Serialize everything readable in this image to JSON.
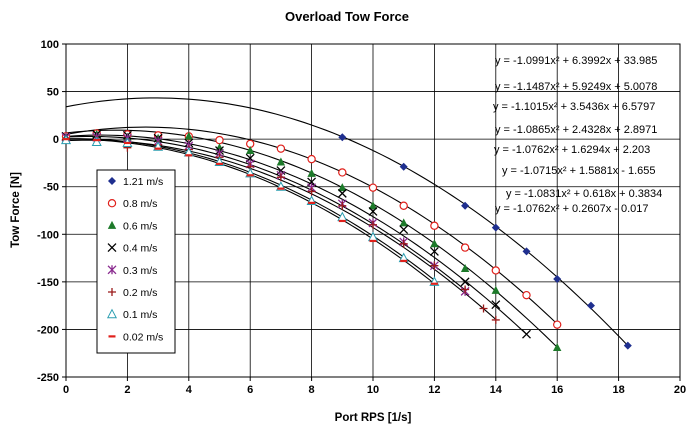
{
  "chart_data": {
    "type": "scatter",
    "title": "Overload Tow Force",
    "xlabel": "Port RPS [1/s]",
    "ylabel": "Tow Force [N]",
    "xlim": [
      0,
      20
    ],
    "ylim": [
      -250,
      100
    ],
    "x_ticks": [
      "0",
      "2",
      "4",
      "6",
      "8",
      "10",
      "12",
      "14",
      "16",
      "18",
      "20"
    ],
    "y_ticks": [
      "100",
      "50",
      "0",
      "-50",
      "-100",
      "-150",
      "-200",
      "-250"
    ],
    "grid": true,
    "legend_position": "left",
    "series": [
      {
        "name": "1.21 m/s",
        "marker": "diamond",
        "color": "#1f2f8f",
        "x": [
          9,
          11,
          13,
          14,
          15,
          16,
          17.1,
          18.3
        ],
        "y": [
          2,
          -29,
          -70,
          -93,
          -118,
          -147,
          -175,
          -217
        ],
        "fit": {
          "a": -1.0991,
          "b": 6.3992,
          "c": 33.985,
          "x_from": 0,
          "x_to": 18.3
        },
        "equation": "y = -1.0991x² + 6.3992x + 33.985"
      },
      {
        "name": "0.8 m/s",
        "marker": "circle",
        "color": "#e0201b",
        "x": [
          0,
          1,
          2,
          3,
          4,
          5,
          6,
          7,
          8,
          9,
          10,
          11,
          12,
          13,
          14,
          15,
          16
        ],
        "y": [
          3,
          6,
          5,
          4,
          3,
          -1,
          -5,
          -10,
          -21,
          -35,
          -51,
          -70,
          -91,
          -114,
          -138,
          -164,
          -195
        ],
        "fit": {
          "a": -1.1487,
          "b": 5.9249,
          "c": 5.0078,
          "x_from": 0,
          "x_to": 16
        },
        "equation": "y = -1.1487x² + 5.9249x + 5.0078"
      },
      {
        "name": "0.6 m/s",
        "marker": "triangle",
        "color": "#1d7a2a",
        "x": [
          0,
          1,
          2,
          3,
          4,
          5,
          6,
          7,
          8,
          9,
          10,
          11,
          12,
          13,
          14,
          16
        ],
        "y": [
          2,
          5,
          2,
          1,
          3,
          -9,
          -12,
          -24,
          -36,
          -51,
          -70,
          -88,
          -110,
          -136,
          -159,
          -219
        ],
        "fit": {
          "a": -1.1015,
          "b": 3.5436,
          "c": 6.5797,
          "x_from": 0,
          "x_to": 16
        },
        "equation": "y = -1.1015x² + 3.5436x + 6.5797"
      },
      {
        "name": "0.4 m/s",
        "marker": "x",
        "color": "#000000",
        "x": [
          0,
          1,
          2,
          3,
          4,
          5,
          6,
          7,
          8,
          9,
          10,
          11,
          12,
          13,
          14,
          15
        ],
        "y": [
          3,
          5,
          4,
          1,
          -4,
          -12,
          -20,
          -33,
          -45,
          -57,
          -76,
          -95,
          -118,
          -150,
          -174,
          -205
        ],
        "fit": {
          "a": -1.0865,
          "b": 2.4328,
          "c": 2.8971,
          "x_from": 0,
          "x_to": 15
        },
        "equation": "y = -1.0865x² + 2.4328x + 2.8971"
      },
      {
        "name": "0.3 m/s",
        "marker": "star",
        "color": "#8a2a8f",
        "x": [
          0,
          1,
          2,
          3,
          4,
          5,
          6,
          7,
          8,
          9,
          10,
          11,
          12,
          13
        ],
        "y": [
          2,
          2,
          1,
          -2,
          -7,
          -15,
          -26,
          -38,
          -51,
          -68,
          -88,
          -108,
          -133,
          -160
        ],
        "fit": {
          "a": -1.0762,
          "b": 1.6294,
          "c": 2.203,
          "x_from": 0,
          "x_to": 13
        },
        "equation": "y = -1.0762x² + 1.6294x + 2.203"
      },
      {
        "name": "0.2 m/s",
        "marker": "plus",
        "color": "#9b1b1b",
        "x": [
          0,
          1,
          2,
          3,
          4,
          5,
          6,
          7,
          8,
          9,
          10,
          11,
          12,
          13,
          13.6,
          14
        ],
        "y": [
          -1,
          -1,
          -9,
          -6,
          -11,
          -19,
          -29,
          -40,
          -55,
          -70,
          -90,
          -110,
          -133,
          -158,
          -178,
          -190
        ],
        "fit": {
          "a": -1.0715,
          "b": 1.5881,
          "c": -1.655,
          "x_from": 0,
          "x_to": 14
        },
        "equation": "y = -1.0715x² + 1.5881x - 1.655"
      },
      {
        "name": "0.1 m/s",
        "marker": "triangle-open",
        "color": "#2a9db0",
        "x": [
          0,
          1,
          2,
          3,
          4,
          5,
          6,
          7,
          8,
          9,
          10,
          11,
          12
        ],
        "y": [
          -1,
          -3,
          -4,
          -8,
          -14,
          -24,
          -36,
          -50,
          -65,
          -82,
          -103,
          -125,
          -150
        ],
        "fit": {
          "a": -1.0831,
          "b": 0.618,
          "c": 0.3834,
          "x_from": 0,
          "x_to": 12
        },
        "equation": "y = -1.0831x² + 0.618x + 0.3834"
      },
      {
        "name": "0.02 m/s",
        "marker": "dash",
        "color": "#e0201b",
        "x": [
          0,
          1,
          2,
          3,
          4,
          5,
          6,
          7,
          8,
          9,
          10,
          11,
          12
        ],
        "y": [
          0,
          -1,
          -4,
          -10,
          -17,
          -26,
          -38,
          -52,
          -67,
          -86,
          -107,
          -128,
          -152
        ],
        "fit": {
          "a": -1.0762,
          "b": 0.2607,
          "c": -0.017,
          "x_from": 0,
          "x_to": 12
        },
        "equation": "y = -1.0762x² + 0.2607x - 0.017"
      }
    ]
  }
}
